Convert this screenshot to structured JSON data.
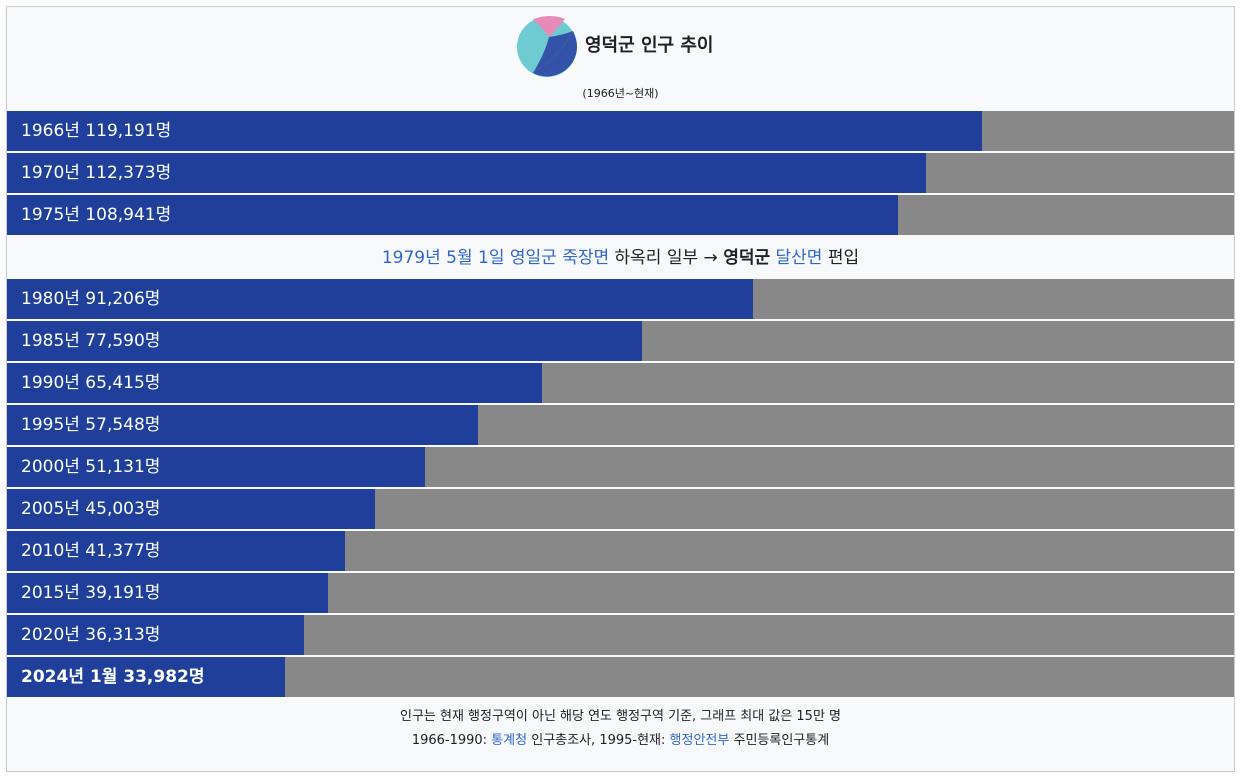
{
  "header": {
    "title": "영덕군 인구 추이",
    "subtitle": "(1966년~현재)"
  },
  "colors": {
    "bar": "#1f3f9a",
    "track": "#888888",
    "link": "#3366cc",
    "logo_pink": "#e88ab8",
    "logo_cyan": "#6fcbd2",
    "logo_blue": "#3453a8"
  },
  "chart_data": {
    "type": "bar",
    "orientation": "horizontal",
    "xlim": [
      0,
      150000
    ],
    "categories": [
      "1966년",
      "1970년",
      "1975년",
      "1980년",
      "1985년",
      "1990년",
      "1995년",
      "2000년",
      "2005년",
      "2010년",
      "2015년",
      "2020년",
      "2024년 1월"
    ],
    "values": [
      119191,
      112373,
      108941,
      91206,
      77590,
      65415,
      57548,
      51131,
      45003,
      41377,
      39191,
      36313,
      33982
    ],
    "labels": [
      "1966년 119,191명",
      "1970년 112,373명",
      "1975년 108,941명",
      "1980년 91,206명",
      "1985년 77,590명",
      "1990년 65,415명",
      "1995년 57,548명",
      "2000년 51,131명",
      "2005년 45,003명",
      "2010년 41,377명",
      "2015년 39,191명",
      "2020년 36,313명",
      "2024년 1월 33,982명"
    ]
  },
  "note": {
    "date_link": "1979년 5월 1일",
    "county_link": "영일군",
    "town_link": "죽장면",
    "village_text": "하옥리 일부 →",
    "target_county": "영덕군",
    "target_town_link": "달산면",
    "action": "편입"
  },
  "footer": {
    "line1": "인구는 현재 행정구역이 아닌 해당 연도 행정구역 기준, 그래프 최대 값은 15만 명",
    "line2_prefix": "1966-1990:",
    "line2_link1": "통계청",
    "line2_mid": "인구총조사, 1995-현재:",
    "line2_link2": "행정안전부",
    "line2_suffix": "주민등록인구통계"
  }
}
